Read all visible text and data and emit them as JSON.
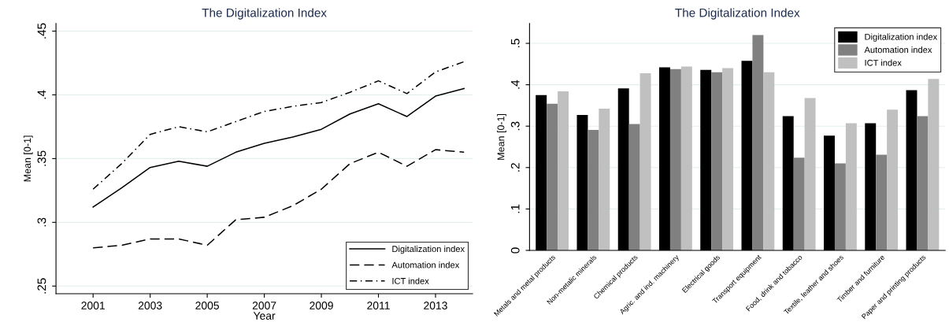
{
  "chart_data": [
    {
      "type": "line",
      "title": "The Digitalization Index",
      "xlabel": "Year",
      "ylabel": "Mean [0-1]",
      "x": [
        2001,
        2002,
        2003,
        2004,
        2005,
        2006,
        2007,
        2008,
        2009,
        2010,
        2011,
        2012,
        2013,
        2014
      ],
      "series": [
        {
          "name": "Digitalization index",
          "color": "#000000",
          "line_style": "solid",
          "values": [
            0.312,
            0.327,
            0.343,
            0.348,
            0.344,
            0.355,
            0.362,
            0.367,
            0.373,
            0.385,
            0.393,
            0.383,
            0.399,
            0.405
          ]
        },
        {
          "name": "Automation index",
          "color": "#000000",
          "line_style": "dashed",
          "values": [
            0.28,
            0.282,
            0.287,
            0.287,
            0.282,
            0.302,
            0.304,
            0.313,
            0.326,
            0.346,
            0.355,
            0.344,
            0.357,
            0.355
          ]
        },
        {
          "name": "ICT index",
          "color": "#000000",
          "line_style": "dashdot",
          "values": [
            0.326,
            0.346,
            0.369,
            0.375,
            0.371,
            0.379,
            0.387,
            0.391,
            0.394,
            0.402,
            0.411,
            0.401,
            0.418,
            0.426
          ]
        }
      ],
      "xlim": [
        1999.7,
        2014.3
      ],
      "xticks": [
        2001,
        2003,
        2005,
        2007,
        2009,
        2011,
        2013
      ],
      "ylim": [
        0.244,
        0.456
      ],
      "yticks": [
        {
          "value": 0.25,
          "label": ".25"
        },
        {
          "value": 0.3,
          "label": ".3"
        },
        {
          "value": 0.35,
          "label": ".35"
        },
        {
          "value": 0.4,
          "label": ".4"
        },
        {
          "value": 0.45,
          "label": ".45"
        }
      ],
      "grid": "y",
      "legend": "bottom right"
    },
    {
      "type": "bar",
      "title": "The Digitalization Index",
      "ylabel": "Mean [0-1]",
      "categories": [
        "Metals and metal products",
        "Non-metalic minerals",
        "Chemical products",
        "Agric. and ind. machinery",
        "Electrical goods",
        "Transport equipment",
        "Food, drink and tobacco",
        "Textile, leather and shoes",
        "Timber and furniture",
        "Paper and printing products"
      ],
      "series": [
        {
          "name": "Digitalization index",
          "color": "#000000",
          "values": [
            0.375,
            0.327,
            0.391,
            0.442,
            0.436,
            0.458,
            0.324,
            0.277,
            0.307,
            0.387
          ]
        },
        {
          "name": "Automation index",
          "color": "#808080",
          "values": [
            0.354,
            0.291,
            0.305,
            0.438,
            0.43,
            0.52,
            0.224,
            0.21,
            0.231,
            0.324
          ]
        },
        {
          "name": "ICT index",
          "color": "#c0c0c0",
          "values": [
            0.384,
            0.342,
            0.428,
            0.444,
            0.44,
            0.43,
            0.368,
            0.307,
            0.34,
            0.414
          ]
        }
      ],
      "ylim": [
        0,
        0.548
      ],
      "yticks": [
        0,
        {
          "value": 0.1,
          "label": ".1"
        },
        {
          "value": 0.2,
          "label": ".2"
        },
        {
          "value": 0.3,
          "label": ".3"
        },
        {
          "value": 0.4,
          "label": ".4"
        },
        {
          "value": 0.5,
          "label": ".5"
        }
      ],
      "grid": "y",
      "legend": "top right"
    }
  ]
}
